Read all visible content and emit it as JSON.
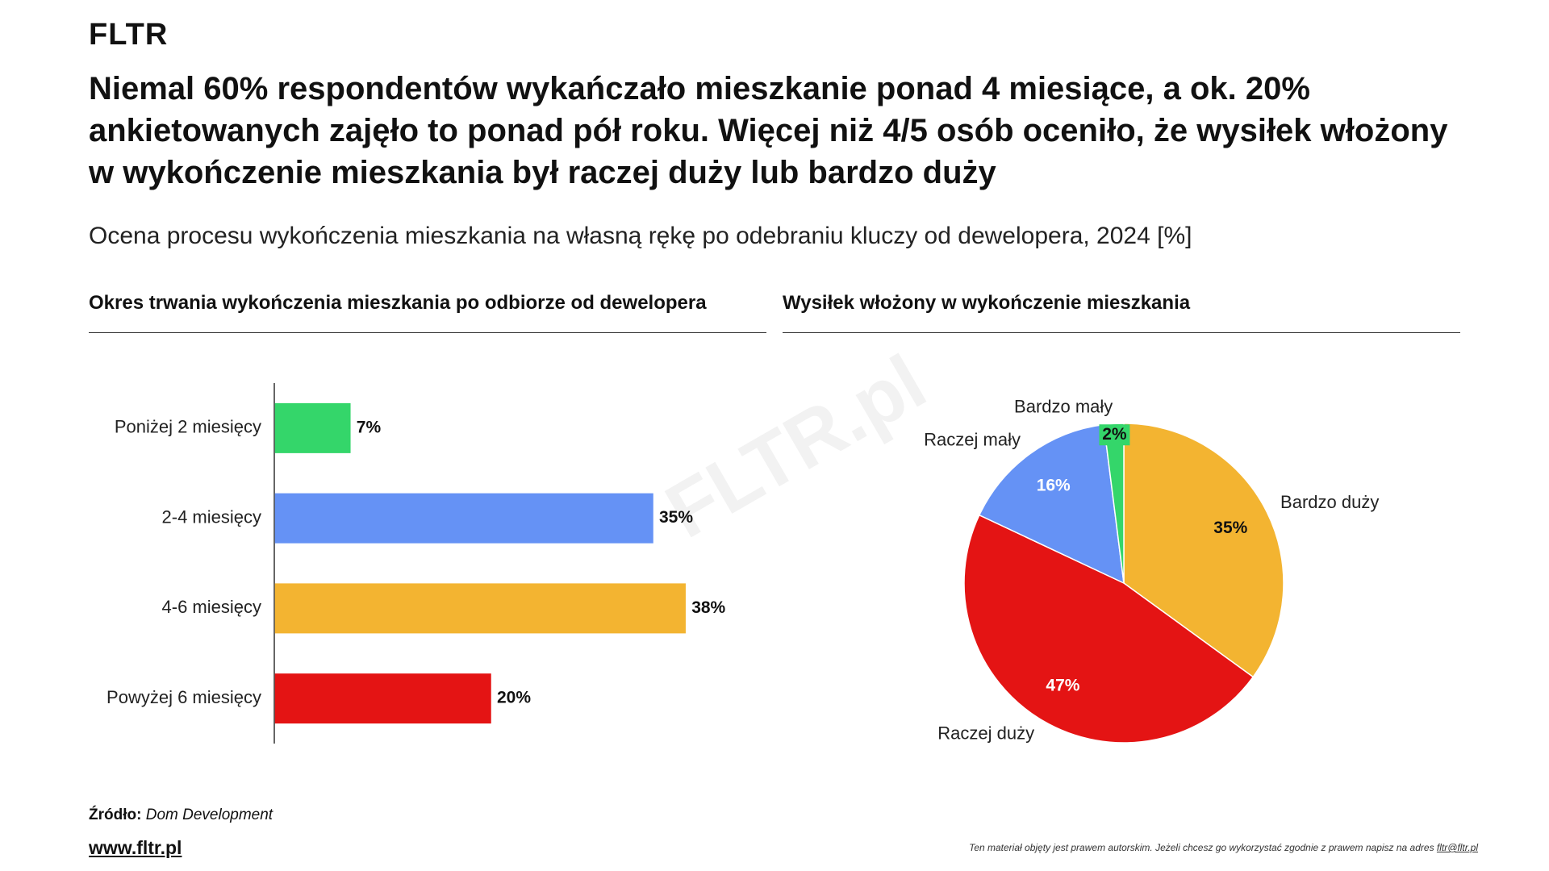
{
  "brand": "FLTR",
  "title": "Niemal 60% respondentów wykańczało mieszkanie ponad 4 miesiące, a ok. 20% ankietowanych zajęło to ponad pół roku. Więcej niż 4/5 osób oceniło, że wysiłek włożony w wykończenie mieszkania był raczej duży lub bardzo duży",
  "subtitle": "Ocena procesu wykończenia mieszkania na własną rękę po odebraniu kluczy od dewelopera, 2024 [%]",
  "watermark": "FLTR.pl",
  "chart_data": [
    {
      "type": "barh",
      "title": "Okres trwania wykończenia mieszkania po odbiorze od dewelopera",
      "categories": [
        "Poniżej 2 miesięcy",
        "2-4 miesięcy",
        "4-6 miesięcy",
        "Powyżej 6 miesięcy"
      ],
      "values": [
        7,
        35,
        38,
        20
      ],
      "value_labels": [
        "7%",
        "35%",
        "38%",
        "20%"
      ],
      "colors": [
        "#34d66a",
        "#6592f5",
        "#f3b431",
        "#e41414"
      ]
    },
    {
      "type": "pie",
      "title": "Wysiłek włożony w wykończenie mieszkania",
      "categories": [
        "Bardzo duży",
        "Raczej duży",
        "Raczej mały",
        "Bardzo mały"
      ],
      "values": [
        35,
        47,
        16,
        2
      ],
      "value_labels": [
        "35%",
        "47%",
        "16%",
        "2%"
      ],
      "colors": [
        "#f3b431",
        "#e41414",
        "#6592f5",
        "#34d66a"
      ]
    }
  ],
  "source_label": "Źródło:",
  "source": "Dom Development",
  "website": "www.fltr.pl",
  "notice": "Ten materiał objęty jest prawem autorskim. Jeżeli chcesz go wykorzystać zgodnie z prawem napisz na adres",
  "email": "fltr@fltr.pl"
}
